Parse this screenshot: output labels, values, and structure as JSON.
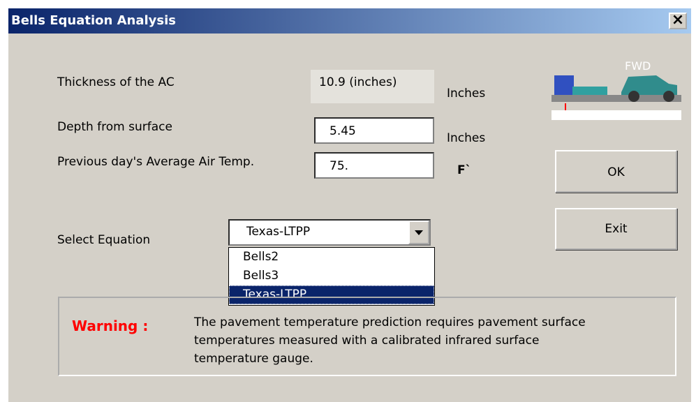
{
  "window": {
    "title": "Bells Equation Analysis",
    "close": "×"
  },
  "fields": {
    "thickness_label": "Thickness of the AC",
    "thickness_value": "10.9 (inches)",
    "thickness_unit": "Inches",
    "depth_label": "Depth from surface",
    "depth_value": "5.45",
    "depth_unit": "Inches",
    "temp_label": "Previous day's Average Air Temp.",
    "temp_value": "75.",
    "temp_unit": "F`"
  },
  "image": {
    "label": "FWD"
  },
  "buttons": {
    "ok": "OK",
    "exit": "Exit"
  },
  "equation": {
    "label": "Select Equation",
    "selected": "Texas-LTPP",
    "options": [
      "Bells2",
      "Bells3",
      "Texas-LTPP"
    ]
  },
  "warning": {
    "title": "Warning :",
    "lines": [
      "The pavement temperature prediction requires pavement surface",
      "temperatures measured with a calibrated infrared surface",
      "temperature gauge."
    ]
  }
}
